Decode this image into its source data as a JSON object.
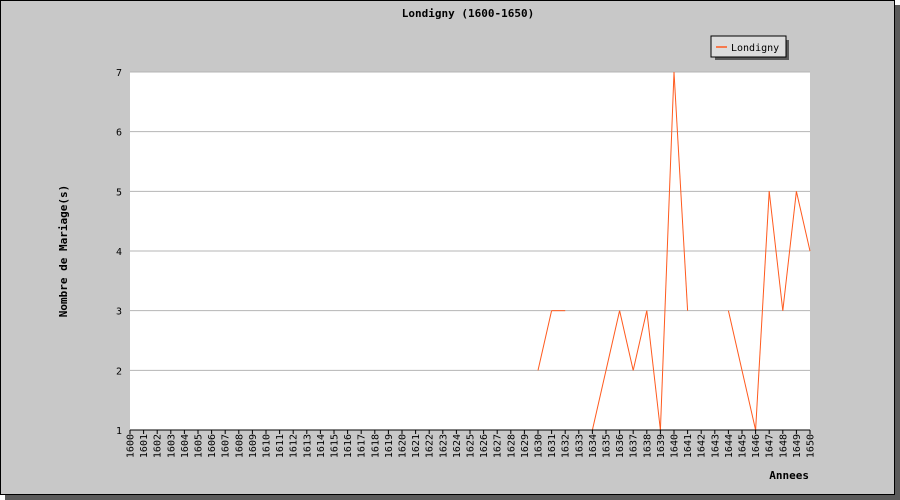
{
  "chart_data": {
    "type": "line",
    "title": "Londigny (1600-1650)",
    "xlabel": "Annees",
    "ylabel": "Nombre de Mariage(s)",
    "ylim": [
      1,
      7
    ],
    "yticks": [
      1,
      2,
      3,
      4,
      5,
      6,
      7
    ],
    "grid": true,
    "legend_position": "top-right",
    "x": [
      1600,
      1601,
      1602,
      1603,
      1604,
      1605,
      1606,
      1607,
      1608,
      1609,
      1610,
      1611,
      1612,
      1613,
      1614,
      1615,
      1616,
      1617,
      1618,
      1619,
      1620,
      1621,
      1622,
      1623,
      1624,
      1625,
      1626,
      1627,
      1628,
      1629,
      1630,
      1631,
      1632,
      1633,
      1634,
      1635,
      1636,
      1637,
      1638,
      1639,
      1640,
      1641,
      1642,
      1643,
      1644,
      1645,
      1646,
      1647,
      1648,
      1649,
      1650
    ],
    "series": [
      {
        "name": "Londigny",
        "color": "#ff5a1e",
        "values": [
          null,
          null,
          null,
          null,
          null,
          null,
          null,
          null,
          null,
          null,
          null,
          null,
          null,
          null,
          null,
          null,
          null,
          null,
          null,
          null,
          null,
          null,
          null,
          null,
          null,
          null,
          null,
          null,
          null,
          null,
          2,
          3,
          3,
          null,
          1,
          2,
          3,
          2,
          3,
          1,
          7,
          3,
          null,
          null,
          3,
          2,
          1,
          5,
          3,
          5,
          4
        ]
      }
    ]
  }
}
